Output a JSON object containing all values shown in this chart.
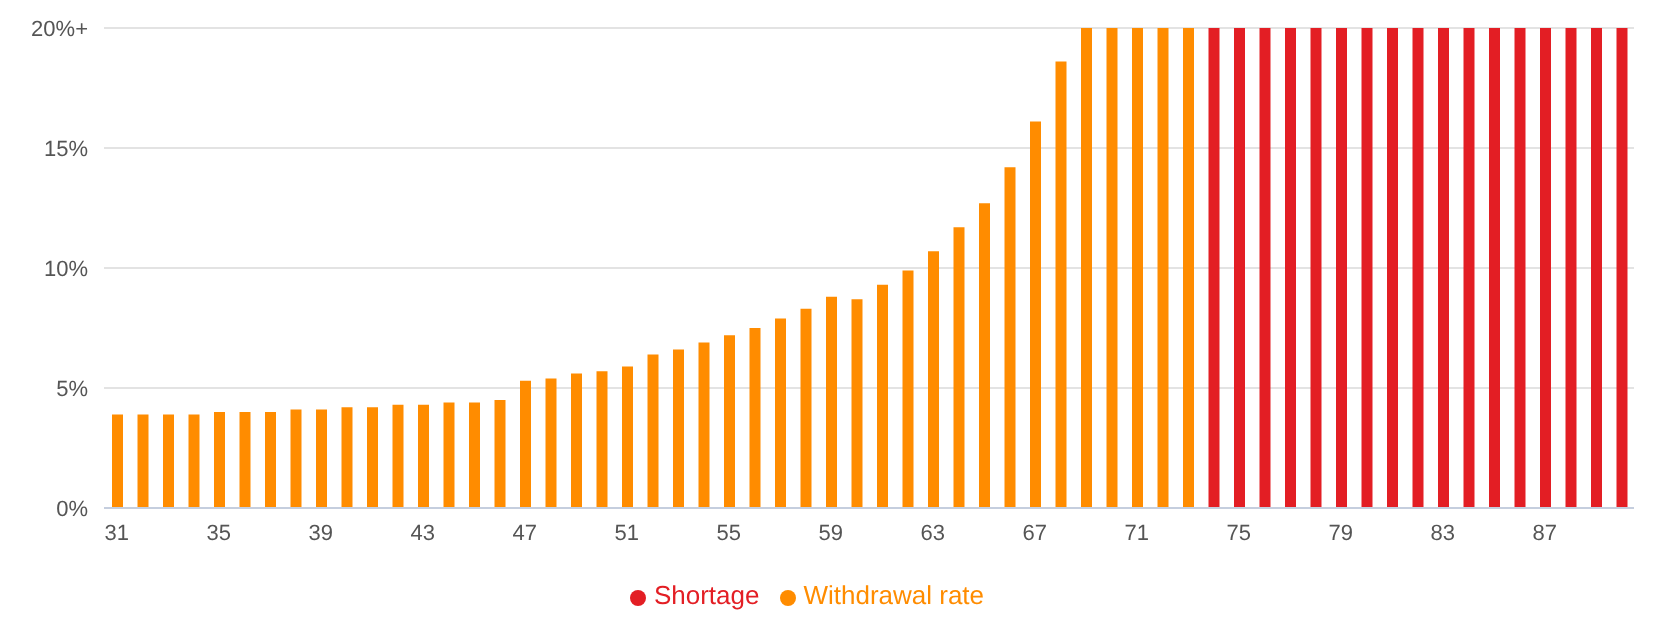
{
  "chart_data": {
    "type": "bar",
    "categories": [
      "31",
      null,
      null,
      null,
      "35",
      null,
      null,
      null,
      "39",
      null,
      null,
      null,
      "43",
      null,
      null,
      null,
      "47",
      null,
      null,
      null,
      "51",
      null,
      null,
      null,
      "55",
      null,
      null,
      null,
      "59",
      null,
      null,
      null,
      "63",
      null,
      null,
      null,
      "67",
      null,
      null,
      null,
      "71",
      null,
      null,
      null,
      "75",
      null,
      null,
      null,
      "79",
      null,
      null,
      null,
      "83",
      null,
      null,
      null,
      "87",
      null,
      null,
      null
    ],
    "series": [
      {
        "name": "Withdrawal rate",
        "color": "#ff8c00",
        "values": [
          3.9,
          3.9,
          3.9,
          3.9,
          4.0,
          4.0,
          4.0,
          4.1,
          4.1,
          4.2,
          4.2,
          4.3,
          4.3,
          4.4,
          4.4,
          4.5,
          5.3,
          5.4,
          5.6,
          5.7,
          5.9,
          6.4,
          6.6,
          6.9,
          7.2,
          7.5,
          7.9,
          8.3,
          8.8,
          8.7,
          9.3,
          9.9,
          10.7,
          11.7,
          12.7,
          14.2,
          16.1,
          18.6,
          20,
          20,
          20,
          20,
          20,
          null,
          null,
          null,
          null,
          null,
          null,
          null,
          null,
          null,
          null,
          null,
          null,
          null,
          null,
          null,
          null,
          null
        ]
      },
      {
        "name": "Shortage",
        "color": "#e31e24",
        "values": [
          null,
          null,
          null,
          null,
          null,
          null,
          null,
          null,
          null,
          null,
          null,
          null,
          null,
          null,
          null,
          null,
          null,
          null,
          null,
          null,
          null,
          null,
          null,
          null,
          null,
          null,
          null,
          null,
          null,
          null,
          null,
          null,
          null,
          null,
          null,
          null,
          null,
          null,
          null,
          null,
          null,
          null,
          null,
          20,
          20,
          20,
          20,
          20,
          20,
          20,
          20,
          20,
          20,
          20,
          20,
          20,
          20,
          20,
          20,
          20
        ]
      }
    ],
    "ylim": [
      0,
      20
    ],
    "yticks": [
      {
        "value": 0,
        "label": "0%"
      },
      {
        "value": 5,
        "label": "5%"
      },
      {
        "value": 10,
        "label": "10%"
      },
      {
        "value": 15,
        "label": "15%"
      },
      {
        "value": 20,
        "label": "20%+"
      }
    ],
    "grid": "y",
    "legend": "bottom"
  }
}
